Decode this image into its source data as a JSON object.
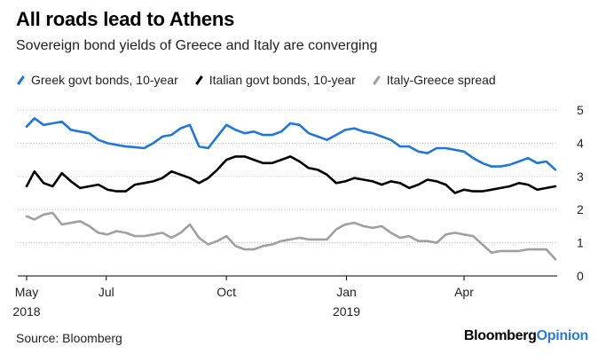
{
  "header": {
    "title": "All roads lead to Athens",
    "subtitle": "Sovereign bond yields of Greece and Italy are converging"
  },
  "footer": {
    "source": "Source: Bloomberg",
    "brand_main": "Bloomberg",
    "brand_accent": "Opinion"
  },
  "chart_data": {
    "type": "line",
    "title": "All roads lead to Athens",
    "subtitle": "Sovereign bond yields of Greece and Italy are converging",
    "xlabel": "",
    "ylabel": "",
    "ylim": [
      0,
      5
    ],
    "yticks": [
      "0",
      "1",
      "2",
      "3",
      "4",
      "5"
    ],
    "xtick_labels": [
      {
        "label": "May",
        "year": "2018",
        "x": "2018-05-01"
      },
      {
        "label": "Jul",
        "year": "",
        "x": "2018-07-01"
      },
      {
        "label": "Oct",
        "year": "",
        "x": "2018-10-01"
      },
      {
        "label": "Jan",
        "year": "2019",
        "x": "2019-01-01"
      },
      {
        "label": "Apr",
        "year": "",
        "x": "2019-04-01"
      }
    ],
    "x_range": [
      "2018-05-01",
      "2019-06-10"
    ],
    "grid": "horizontal-dotted",
    "legend_position": "top-left",
    "x": [
      "2018-05-01",
      "2018-05-07",
      "2018-05-14",
      "2018-05-21",
      "2018-05-28",
      "2018-06-04",
      "2018-06-11",
      "2018-06-18",
      "2018-06-25",
      "2018-07-02",
      "2018-07-09",
      "2018-07-16",
      "2018-07-23",
      "2018-07-30",
      "2018-08-06",
      "2018-08-13",
      "2018-08-20",
      "2018-08-27",
      "2018-09-03",
      "2018-09-10",
      "2018-09-17",
      "2018-09-24",
      "2018-10-01",
      "2018-10-08",
      "2018-10-15",
      "2018-10-22",
      "2018-10-29",
      "2018-11-05",
      "2018-11-12",
      "2018-11-19",
      "2018-11-26",
      "2018-12-03",
      "2018-12-10",
      "2018-12-17",
      "2018-12-24",
      "2018-12-31",
      "2019-01-07",
      "2019-01-14",
      "2019-01-21",
      "2019-01-28",
      "2019-02-04",
      "2019-02-11",
      "2019-02-18",
      "2019-02-25",
      "2019-03-04",
      "2019-03-11",
      "2019-03-18",
      "2019-03-25",
      "2019-04-01",
      "2019-04-08",
      "2019-04-15",
      "2019-04-22",
      "2019-04-29",
      "2019-05-06",
      "2019-05-13",
      "2019-05-20",
      "2019-05-27",
      "2019-06-03",
      "2019-06-10"
    ],
    "series": [
      {
        "name": "Greek govt bonds, 10-year",
        "color": "#1f78d6",
        "values": [
          4.5,
          4.75,
          4.55,
          4.6,
          4.65,
          4.4,
          4.35,
          4.3,
          4.1,
          4.0,
          3.95,
          3.9,
          3.88,
          3.85,
          4.0,
          4.2,
          4.25,
          4.45,
          4.55,
          3.9,
          3.85,
          4.2,
          4.55,
          4.4,
          4.3,
          4.35,
          4.25,
          4.25,
          4.35,
          4.6,
          4.55,
          4.3,
          4.2,
          4.1,
          4.25,
          4.4,
          4.45,
          4.35,
          4.3,
          4.2,
          4.1,
          3.9,
          3.9,
          3.75,
          3.7,
          3.85,
          3.85,
          3.8,
          3.75,
          3.55,
          3.4,
          3.3,
          3.3,
          3.35,
          3.45,
          3.55,
          3.4,
          3.45,
          3.2
        ]
      },
      {
        "name": "Italian govt bonds, 10-year",
        "color": "#000000",
        "values": [
          2.7,
          3.15,
          2.8,
          2.7,
          3.1,
          2.85,
          2.65,
          2.7,
          2.75,
          2.6,
          2.55,
          2.55,
          2.75,
          2.8,
          2.85,
          2.95,
          3.15,
          3.05,
          2.95,
          2.8,
          2.95,
          3.2,
          3.5,
          3.6,
          3.6,
          3.5,
          3.4,
          3.4,
          3.5,
          3.6,
          3.45,
          3.25,
          3.2,
          3.05,
          2.8,
          2.85,
          2.95,
          2.9,
          2.85,
          2.75,
          2.85,
          2.8,
          2.65,
          2.75,
          2.9,
          2.85,
          2.75,
          2.5,
          2.6,
          2.55,
          2.55,
          2.6,
          2.65,
          2.7,
          2.8,
          2.75,
          2.6,
          2.65,
          2.7
        ]
      },
      {
        "name": "Italy-Greece spread",
        "color": "#a0a0a0",
        "values": [
          1.8,
          1.7,
          1.85,
          1.9,
          1.55,
          1.6,
          1.65,
          1.5,
          1.3,
          1.25,
          1.35,
          1.3,
          1.2,
          1.2,
          1.25,
          1.3,
          1.15,
          1.3,
          1.55,
          1.15,
          0.95,
          1.05,
          1.2,
          0.9,
          0.8,
          0.8,
          0.9,
          0.95,
          1.05,
          1.1,
          1.15,
          1.1,
          1.1,
          1.1,
          1.4,
          1.55,
          1.6,
          1.5,
          1.45,
          1.5,
          1.3,
          1.15,
          1.2,
          1.05,
          1.05,
          1.0,
          1.25,
          1.3,
          1.25,
          1.2,
          0.95,
          0.7,
          0.75,
          0.75,
          0.75,
          0.8,
          0.8,
          0.8,
          0.5
        ]
      }
    ]
  }
}
